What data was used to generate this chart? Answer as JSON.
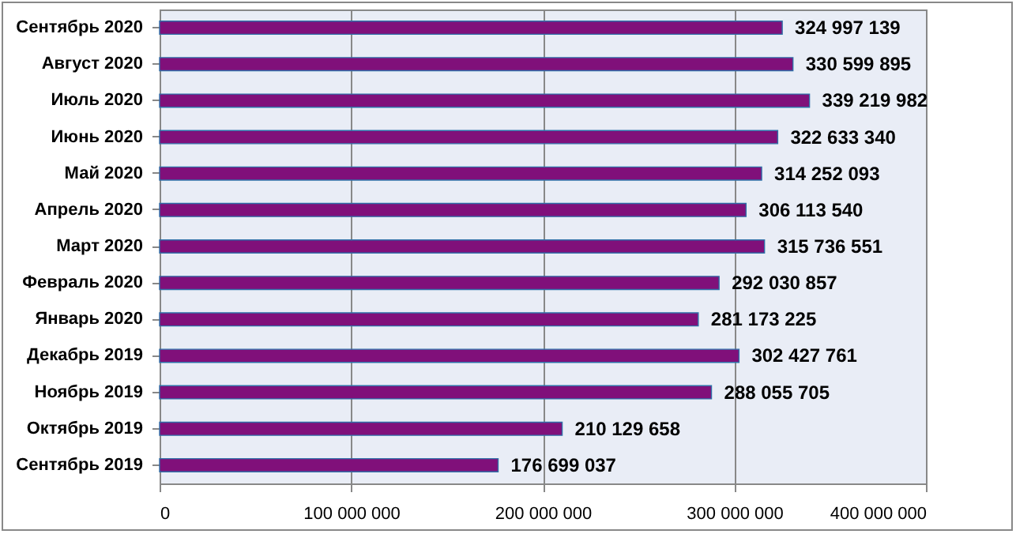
{
  "chart_data": {
    "type": "bar",
    "orientation": "horizontal",
    "categories": [
      "Сентябрь  2020",
      "Август  2020",
      "Июль  2020",
      "Июнь  2020",
      "Май  2020",
      "Апрель  2020",
      "Март  2020",
      "Февраль  2020",
      "Январь  2020",
      "Декабрь  2019",
      "Ноябрь  2019",
      "Октябрь  2019",
      "Сентябрь  2019"
    ],
    "values": [
      324997139,
      330599895,
      339219982,
      322633340,
      314252093,
      306113540,
      315736551,
      292030857,
      281173225,
      302427761,
      288055705,
      210129658,
      176699037
    ],
    "color": "#80107a",
    "xlim": [
      0,
      400000000
    ],
    "xticks": [
      0,
      100000000,
      200000000,
      300000000,
      400000000
    ],
    "grid": "x",
    "data_labels": true
  }
}
